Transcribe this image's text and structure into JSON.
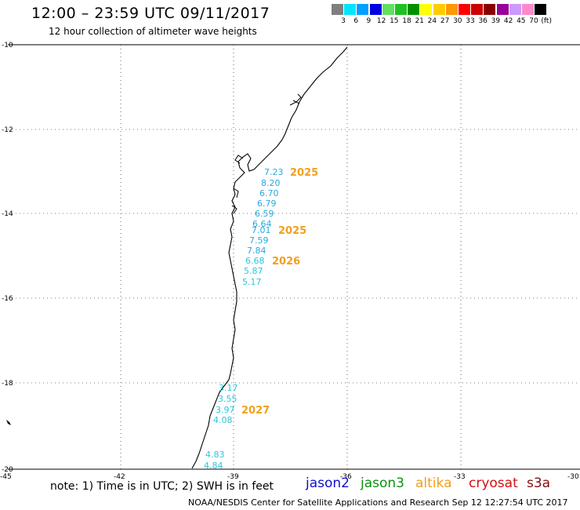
{
  "header": {
    "title": "12:00 – 23:59 UTC 09/11/2017",
    "subtitle": "12 hour collection of altimeter wave heights"
  },
  "colorbar": {
    "colors": [
      "#7f7f7f",
      "#00e5ff",
      "#00a0ff",
      "#0000e0",
      "#60e060",
      "#20c020",
      "#009000",
      "#ffff00",
      "#ffcc00",
      "#ff9900",
      "#ff0000",
      "#cc0000",
      "#880000",
      "#990099",
      "#cc99ff",
      "#ff88cc",
      "#000000"
    ],
    "labels": [
      "3",
      "6",
      "9",
      "12",
      "15",
      "18",
      "21",
      "24",
      "27",
      "30",
      "33",
      "36",
      "39",
      "42",
      "45",
      "70",
      "(ft)"
    ]
  },
  "axes": {
    "lat_labels": [
      "-10",
      "-12",
      "-14",
      "-16",
      "-18",
      "-20"
    ],
    "lon_labels": [
      "-45",
      "-42",
      "-39",
      "-36",
      "-33",
      "-30"
    ]
  },
  "passes": [
    {
      "label": "2025",
      "values": [
        "7.23",
        "8.20",
        "6.70",
        "6.79",
        "6.59",
        "6.64"
      ]
    },
    {
      "label": "2025",
      "values": [
        "7.01",
        "7.59",
        "7.84"
      ]
    },
    {
      "label": "2026",
      "values": [
        "6.68",
        "5.87",
        "5.17"
      ]
    },
    {
      "label": "2027",
      "values": [
        "3.17",
        "3.55",
        "3.97",
        "4.08"
      ]
    },
    {
      "label": "",
      "values": [
        "4.83",
        "4.84"
      ]
    }
  ],
  "footer": {
    "note": "note: 1) Time is in UTC; 2) SWH is in feet",
    "satellites": [
      {
        "name": "jason2",
        "color": "#1010d0"
      },
      {
        "name": "jason3",
        "color": "#109010"
      },
      {
        "name": "altika",
        "color": "#f0a020"
      },
      {
        "name": "cryosat",
        "color": "#d01010"
      },
      {
        "name": "s3a",
        "color": "#801010"
      }
    ],
    "credit": "NOAA/NESDIS Center for Satellite Applications and Research    Sep 12 12:27:54 UTC 2017"
  }
}
